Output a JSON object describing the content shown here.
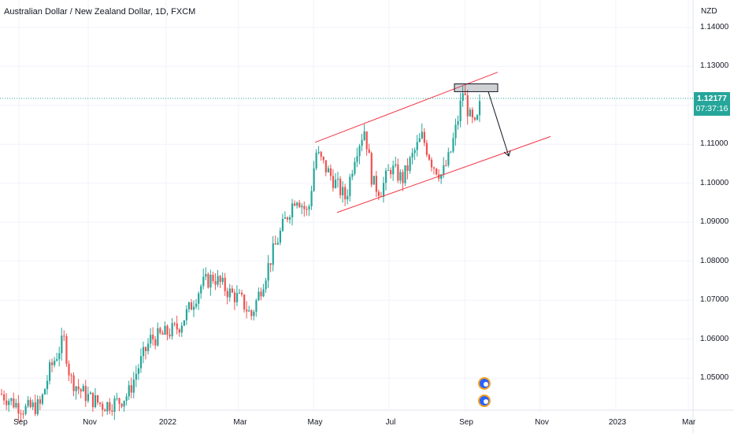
{
  "header": {
    "title": "Australian Dollar / New Zealand Dollar, 1D, FXCM",
    "currency": "NZD"
  },
  "price_axis": {
    "ticks": [
      "1.14000",
      "1.13000",
      "1.12000",
      "1.11000",
      "1.10000",
      "1.09000",
      "1.08000",
      "1.07000",
      "1.06000",
      "1.05000"
    ],
    "last_price": "1.12177",
    "countdown": "07:37:16"
  },
  "time_axis": {
    "labels": [
      "Sep",
      "Nov",
      "2022",
      "Mar",
      "May",
      "Jul",
      "Sep",
      "Nov",
      "2023",
      "Mar"
    ]
  },
  "colors": {
    "up": "#26a69a",
    "down": "#ef5350",
    "price_line": "#26a69a",
    "channel": "#f23645",
    "badge": "#26a69a"
  },
  "chart_data": {
    "type": "candlestick",
    "symbol": "Australian Dollar / New Zealand Dollar",
    "interval": "1D",
    "source": "FXCM",
    "y_unit": "NZD",
    "ylim": [
      1.041,
      1.145
    ],
    "x_axis_labels": [
      "Sep",
      "Nov",
      "2022",
      "Mar",
      "May",
      "Jul",
      "Sep",
      "Nov",
      "2023",
      "Mar"
    ],
    "last_price": 1.12177,
    "approx_closes": [
      {
        "date": "2021-09",
        "close": 1.046
      },
      {
        "date": "2021-10",
        "close": 1.058
      },
      {
        "date": "2021-11",
        "close": 1.047
      },
      {
        "date": "2021-12",
        "close": 1.044
      },
      {
        "date": "2022-01",
        "close": 1.06
      },
      {
        "date": "2022-02",
        "close": 1.074
      },
      {
        "date": "2022-03",
        "close": 1.076
      },
      {
        "date": "2022-04",
        "close": 1.094
      },
      {
        "date": "2022-05",
        "close": 1.107
      },
      {
        "date": "2022-06",
        "close": 1.1
      },
      {
        "date": "2022-07",
        "close": 1.107
      },
      {
        "date": "2022-08",
        "close": 1.112
      },
      {
        "date": "2022-09",
        "close": 1.1218
      }
    ],
    "annotations": [
      {
        "type": "channel-upper-line",
        "from": {
          "date": "2022-05-01",
          "price": 1.1105
        },
        "to": {
          "date": "2022-09-20",
          "price": 1.1285
        }
      },
      {
        "type": "channel-lower-line",
        "from": {
          "date": "2022-05-10",
          "price": 1.0925
        },
        "to": {
          "date": "2022-11-10",
          "price": 1.112
        }
      },
      {
        "type": "rectangle",
        "from": {
          "date": "2022-08-24",
          "price": 1.1255
        },
        "to": {
          "date": "2022-09-15",
          "price": 1.1235
        }
      },
      {
        "type": "arrow",
        "from": {
          "date": "2022-09-12",
          "price": 1.1235
        },
        "to": {
          "date": "2022-10-05",
          "price": 1.107
        }
      }
    ]
  }
}
